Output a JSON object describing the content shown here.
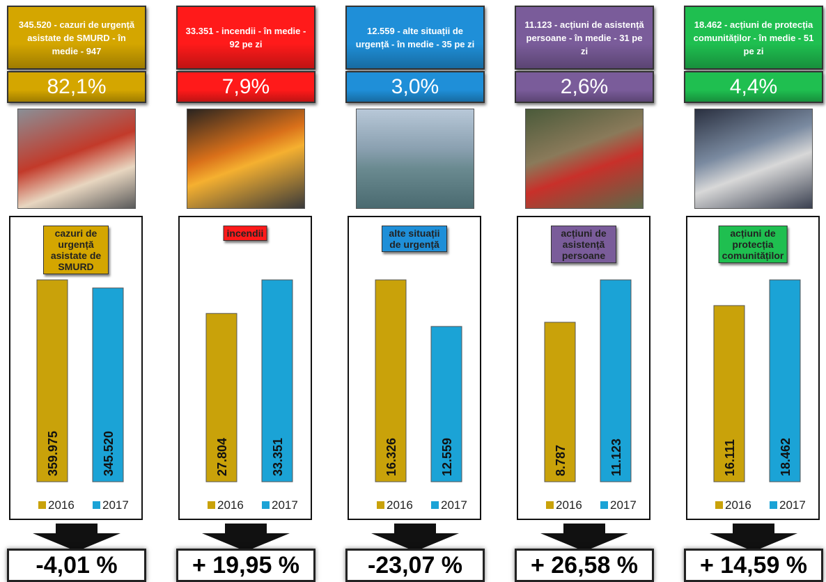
{
  "panels": [
    {
      "header": "345.520 - cazuri de urgență asistate de SMURD - în medie - 947",
      "share": "82,1%",
      "change": "-4,01 %",
      "color": "#d4a600"
    },
    {
      "header": "33.351 - incendii - în medie - 92 pe zi",
      "share": "7,9%",
      "change": "+ 19,95 %",
      "color": "#ff1a1a"
    },
    {
      "header": "12.559 - alte situații de urgență - în medie - 35 pe zi",
      "share": "3,0%",
      "change": "-23,07 %",
      "color": "#1f8fd8"
    },
    {
      "header": "11.123 - acțiuni de asistență persoane - în medie - 31 pe zi",
      "share": "2,6%",
      "change": "+ 26,58 %",
      "color": "#7a5c9a"
    },
    {
      "header": "18.462 - acțiuni de protecția comunităților - în medie - 51 pe zi",
      "share": "4,4%",
      "change": "+ 14,59 %",
      "color": "#1fbf50"
    }
  ],
  "chart_data": [
    {
      "type": "bar",
      "title": "cazuri de urgență asistate de SMURD",
      "series": [
        {
          "name": "2016",
          "color": "#c9a20a",
          "values": [
            359975
          ],
          "value_labels": [
            "359.975"
          ]
        },
        {
          "name": "2017",
          "color": "#1ba3d6",
          "values": [
            345520
          ],
          "value_labels": [
            "345.520"
          ]
        }
      ]
    },
    {
      "type": "bar",
      "title": "incendii",
      "series": [
        {
          "name": "2016",
          "color": "#c9a20a",
          "values": [
            27804
          ],
          "value_labels": [
            "27.804"
          ]
        },
        {
          "name": "2017",
          "color": "#1ba3d6",
          "values": [
            33351
          ],
          "value_labels": [
            "33.351"
          ]
        }
      ]
    },
    {
      "type": "bar",
      "title": "alte situații de urgență",
      "series": [
        {
          "name": "2016",
          "color": "#c9a20a",
          "values": [
            16326
          ],
          "value_labels": [
            "16.326"
          ]
        },
        {
          "name": "2017",
          "color": "#1ba3d6",
          "values": [
            12559
          ],
          "value_labels": [
            "12.559"
          ]
        }
      ]
    },
    {
      "type": "bar",
      "title": "acțiuni de asistență persoane",
      "series": [
        {
          "name": "2016",
          "color": "#c9a20a",
          "values": [
            8787
          ],
          "value_labels": [
            "8.787"
          ]
        },
        {
          "name": "2017",
          "color": "#1ba3d6",
          "values": [
            11123
          ],
          "value_labels": [
            "11.123"
          ]
        }
      ]
    },
    {
      "type": "bar",
      "title": "acțiuni de protecția comunităților",
      "series": [
        {
          "name": "2016",
          "color": "#c9a20a",
          "values": [
            16111
          ],
          "value_labels": [
            "16.111"
          ]
        },
        {
          "name": "2017",
          "color": "#1ba3d6",
          "values": [
            18462
          ],
          "value_labels": [
            "18.462"
          ]
        }
      ]
    }
  ]
}
